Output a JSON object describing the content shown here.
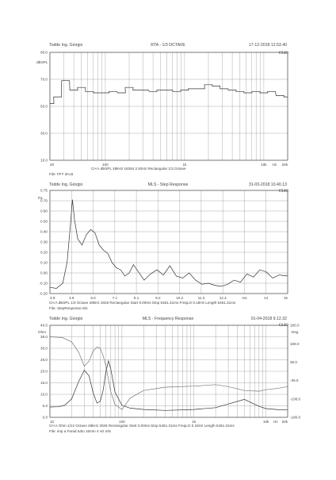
{
  "chart_data": [
    {
      "type": "line",
      "header": {
        "left": "Todde Ing. Giorgio",
        "center": "RTA - 1/3 OCTAVE",
        "right": "17-12-2018 12.53.40"
      },
      "logo": "CLIO",
      "y_unit": "dBSPL",
      "ylim": [
        10,
        90
      ],
      "y_ticks": [
        "90.0",
        "70.0",
        "50.0",
        "30.0",
        "10.0"
      ],
      "x_scale": "log",
      "xlim": [
        20,
        20000
      ],
      "x_ticks": [
        "20",
        "100",
        "1k",
        "10k",
        "Hz",
        "20k"
      ],
      "footer": "CH A  dBSPL  48kHz  16384  2.93Hz  Rectangular  1/3 Octave",
      "file": "File: FFT 3m.B",
      "series": [
        {
          "x": [
            20,
            25,
            31.5,
            40,
            50,
            63,
            80,
            100,
            125,
            160,
            200,
            250,
            315,
            400,
            500,
            630,
            800,
            1000,
            1250,
            1600,
            2000,
            2500,
            3150,
            4000,
            5000,
            6300,
            8000,
            10000,
            12500,
            16000,
            20000
          ],
          "values": [
            52,
            57,
            69,
            62,
            64,
            61,
            60,
            60,
            61,
            60,
            64,
            62,
            62,
            61,
            62,
            62,
            61,
            62,
            63,
            63,
            66,
            65,
            63,
            62,
            61,
            60,
            61,
            60,
            61,
            58,
            57
          ]
        }
      ]
    },
    {
      "type": "line",
      "header": {
        "left": "Todde Ing. Giorgio",
        "center": "MLS - Step Response",
        "right": "31-03-2018 10.40.13"
      },
      "logo": "CLIO",
      "y_unit": "Pa",
      "ylim": [
        -0.25,
        0.75
      ],
      "y_ticks": [
        "0.75",
        "0.70",
        "0.60",
        "0.50",
        "0.40",
        "0.30",
        "0.20",
        "0.10",
        "0.00",
        "-0.10",
        "-0.20"
      ],
      "xlim": [
        3.9,
        15
      ],
      "x_ticks": [
        "3.9",
        "4.9",
        "6.0",
        "7.1",
        "8.1",
        "9.2",
        "10.2",
        "11.3",
        "12.4",
        "ms",
        "14",
        "15"
      ],
      "footer": "CH A  dBSPL  1/3 Octave  48kHz  2026  Rectangular  Start 0.00ms  Stop 5461.31ms  FreqLO 0.18Hz  Length 5461.31ms",
      "file": "File: StepResponse.mls",
      "series": [
        {
          "x": [
            3.9,
            4.2,
            4.5,
            4.7,
            4.85,
            4.95,
            5.05,
            5.2,
            5.4,
            5.6,
            5.8,
            6.0,
            6.2,
            6.4,
            6.6,
            6.8,
            7.0,
            7.2,
            7.4,
            7.6,
            7.8,
            8.0,
            8.3,
            8.6,
            8.9,
            9.2,
            9.5,
            9.8,
            10.1,
            10.4,
            10.7,
            11.0,
            11.3,
            11.6,
            11.9,
            12.2,
            12.5,
            12.8,
            13.1,
            13.4,
            13.7,
            14.0,
            14.3,
            14.6,
            15.0
          ],
          "values": [
            -0.19,
            -0.2,
            -0.15,
            0.05,
            0.4,
            0.66,
            0.46,
            0.28,
            0.22,
            0.32,
            0.37,
            0.34,
            0.22,
            0.17,
            0.14,
            0.05,
            0.0,
            -0.02,
            -0.08,
            -0.05,
            0.03,
            -0.03,
            -0.12,
            -0.06,
            -0.02,
            -0.07,
            0.02,
            -0.08,
            -0.1,
            -0.05,
            -0.12,
            -0.16,
            -0.15,
            -0.17,
            -0.18,
            -0.16,
            -0.12,
            -0.14,
            -0.06,
            -0.09,
            -0.02,
            -0.04,
            -0.1,
            -0.07,
            -0.08
          ]
        }
      ]
    },
    {
      "type": "line",
      "header": {
        "left": "Todde Ing. Giorgio",
        "center": "MLS - Frequency Response",
        "right": "01-04-2018 9.12.32"
      },
      "logo": "CLIO",
      "y_unit": "Ohm",
      "ylim": [
        0,
        40
      ],
      "y_ticks": [
        "40.0",
        "35.0",
        "30.0",
        "25.0",
        "20.0",
        "15.0",
        "10.0",
        "5.0",
        "0.0"
      ],
      "y2_unit": "Deg",
      "y2lim": [
        -180,
        180
      ],
      "y2_ticks": [
        "180.0",
        "108.0",
        "36.0",
        "-36.0",
        "-108.0",
        "-180.0"
      ],
      "x_scale": "log",
      "xlim": [
        10,
        20000
      ],
      "x_ticks": [
        "10",
        "100",
        "1k",
        "10k",
        "Hz",
        "20k"
      ],
      "footer": "CH A  Ohm  1/12 Octave  48kHz  2026  Rectangular  Start 0.00ms  Stop 5461.31ms  FreqLO 0.18Hz  Length 5461.31ms",
      "file": "File: imp a Farad tubo 16mm 4 Hz.mls",
      "series": [
        {
          "x": [
            10,
            13,
            16,
            20,
            25,
            30,
            35,
            40,
            45,
            50,
            55,
            60,
            65,
            70,
            80,
            100,
            130,
            200,
            400,
            1000,
            2000,
            3000,
            5000,
            8000,
            10000,
            15000,
            20000
          ],
          "values": [
            4.5,
            4.6,
            5.2,
            8.0,
            15.5,
            20.5,
            18.0,
            10.5,
            6.2,
            7.0,
            12.0,
            20.0,
            24.5,
            21.0,
            11.0,
            5.2,
            4.0,
            3.4,
            3.0,
            3.4,
            4.2,
            5.8,
            7.8,
            4.8,
            3.8,
            3.3,
            3.2
          ]
        },
        {
          "x": [
            10,
            15,
            20,
            25,
            30,
            35,
            40,
            45,
            50,
            55,
            60,
            70,
            80,
            100,
            130,
            200,
            400,
            1000,
            2000,
            3000,
            5000,
            8000,
            10000,
            15000,
            20000
          ],
          "values": [
            135,
            132,
            115,
            75,
            20,
            40,
            80,
            95,
            90,
            60,
            20,
            -80,
            -130,
            -150,
            -105,
            -75,
            -62,
            -58,
            -52,
            -60,
            -75,
            -78,
            -72,
            -66,
            -60
          ]
        }
      ]
    }
  ]
}
